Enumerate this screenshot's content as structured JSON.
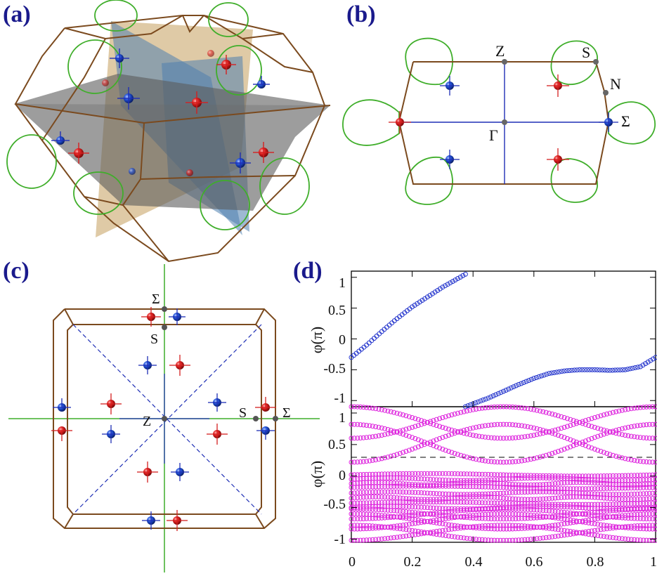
{
  "panels": {
    "a": {
      "label": "(a)"
    },
    "b": {
      "label": "(b)",
      "points": {
        "z": "Z",
        "s": "S",
        "n": "N",
        "gamma": "Γ",
        "sigma": "Σ"
      }
    },
    "c": {
      "label": "(c)",
      "points": {
        "sigma": "Σ",
        "s_top": "S",
        "z": "Z",
        "s_right": "S",
        "sigma_right": "Σ"
      }
    },
    "d": {
      "label": "(d)"
    }
  },
  "colors": {
    "brillouin_edge": "#7b4a1e",
    "fermi_loop": "#3fae2a",
    "axis_blue": "#1f2fb5",
    "monopole_red": "#d42020",
    "monopole_blue": "#1f4fd0",
    "high_sym_point": "#666666",
    "plane_tan": "#c9a66b",
    "plane_blue": "#4f7fae",
    "plane_gray": "#5b5b5b",
    "wilson_top": "#2233cc",
    "wilson_bottom": "#dd22dd"
  },
  "chart_data": [
    {
      "type": "scatter",
      "title": "",
      "xlabel": "",
      "ylabel": "φ(π)",
      "xlim": [
        0,
        1
      ],
      "ylim": [
        -1.1,
        1.1
      ],
      "yticks": [
        "1",
        "0.5",
        "0",
        "-0.5",
        "-1"
      ],
      "series": [
        {
          "segments": [
            {
              "x": [
                0.0,
                0.05,
                0.1,
                0.15,
                0.2,
                0.25,
                0.3,
                0.35,
                0.375
              ],
              "y": [
                -0.3,
                -0.1,
                0.12,
                0.33,
                0.52,
                0.68,
                0.84,
                0.98,
                1.05
              ]
            },
            {
              "x": [
                0.375,
                0.45,
                0.5,
                0.55,
                0.6,
                0.65,
                0.7,
                0.75,
                0.8,
                0.85,
                0.9,
                0.95,
                1.0
              ],
              "y": [
                -1.1,
                -0.96,
                -0.85,
                -0.74,
                -0.64,
                -0.56,
                -0.52,
                -0.5,
                -0.5,
                -0.51,
                -0.5,
                -0.45,
                -0.3
              ]
            }
          ]
        }
      ]
    },
    {
      "type": "scatter",
      "title": "",
      "xlabel": "",
      "ylabel": "φ(π)",
      "xlim": [
        0,
        1
      ],
      "ylim": [
        -1.05,
        1.1
      ],
      "xticks": [
        "0",
        "0.2",
        "0.4",
        "0.6",
        "0.8",
        "1"
      ],
      "yticks": [
        "1",
        "0.5",
        "0",
        "-0.5",
        "-1"
      ],
      "reference_line": 0.24,
      "bands_flat": [
        0.02,
        -0.05,
        -0.12,
        -0.18,
        -0.27,
        -0.35,
        -0.43,
        -0.5
      ],
      "bands_crossing": [
        {
          "y0": 0.52,
          "y1": 0.52,
          "amp": 0.3
        },
        {
          "y0": 0.85,
          "y1": 0.85,
          "amp": 0.25
        },
        {
          "y0": -0.6,
          "y1": -0.6,
          "amp": 0.08
        },
        {
          "y0": -0.72,
          "y1": -0.72,
          "amp": 0.12
        },
        {
          "y0": -0.9,
          "y1": -0.9,
          "amp": 0.12
        }
      ]
    }
  ],
  "x_tick_labels": [
    "0",
    "0.2",
    "0.4",
    "0.6",
    "0.8",
    "1"
  ],
  "y_tick_labels": [
    "1",
    "0.5",
    "0",
    "-0.5",
    "-1"
  ],
  "ylabel": "φ(π)"
}
